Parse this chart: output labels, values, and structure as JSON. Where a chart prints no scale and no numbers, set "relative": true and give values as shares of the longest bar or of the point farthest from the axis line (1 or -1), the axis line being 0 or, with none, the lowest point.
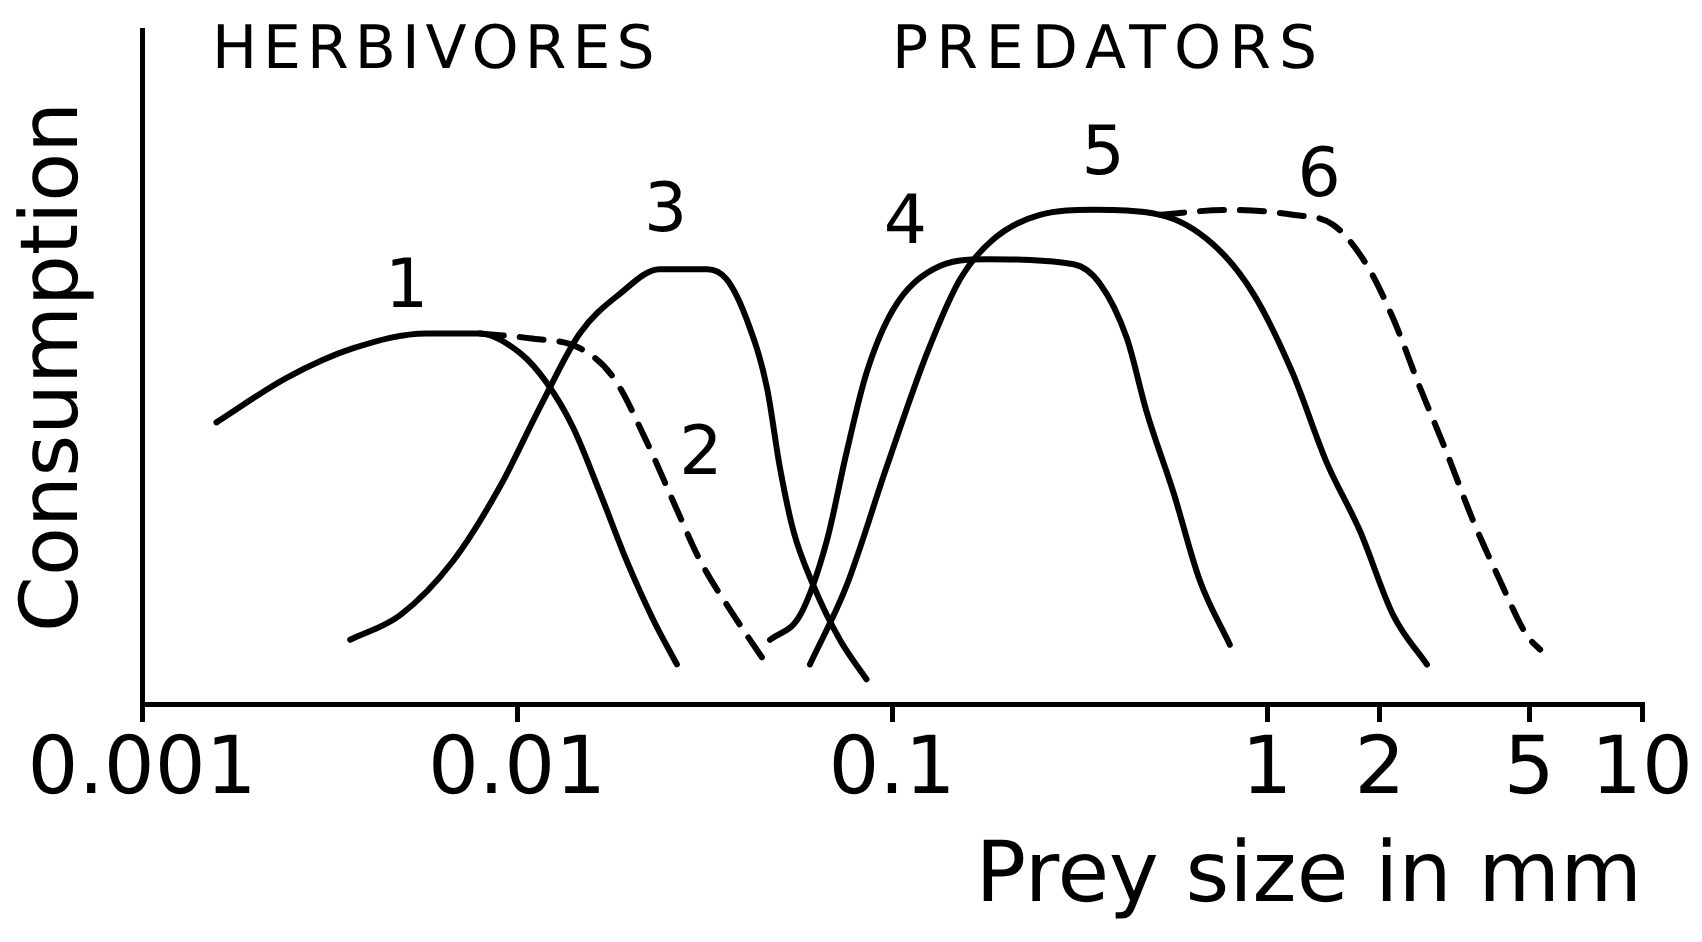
{
  "chart_data": {
    "type": "line",
    "xlabel": "Prey size in mm",
    "ylabel": "Consumption",
    "annotations": [
      "HERBIVORES",
      "PREDATORS"
    ],
    "relative": true,
    "log": "x",
    "grid": false,
    "marker": "none",
    "xlim": [
      0.001,
      10
    ],
    "xticks": [
      0.001,
      0.01,
      0.1,
      1,
      2,
      5,
      10
    ],
    "series": [
      {
        "name": "1",
        "color": "#000000",
        "line_style": "solid",
        "x": [
          0.00158,
          0.00243,
          0.00366,
          0.00574,
          0.00796,
          0.0102,
          0.012,
          0.0141,
          0.0166,
          0.0196,
          0.0231,
          0.0267
        ],
        "values": [
          0.57,
          0.66,
          0.72,
          0.75,
          0.75,
          0.71,
          0.65,
          0.56,
          0.43,
          0.29,
          0.17,
          0.08
        ]
      },
      {
        "name": "2",
        "color": "#000000",
        "line_style": "dashed",
        "x": [
          0.00796,
          0.0108,
          0.0147,
          0.0181,
          0.0222,
          0.0261,
          0.0308,
          0.0378,
          0.0454
        ],
        "values": [
          0.75,
          0.74,
          0.72,
          0.66,
          0.53,
          0.41,
          0.29,
          0.18,
          0.09
        ]
      },
      {
        "name": "3",
        "color": "#000000",
        "line_style": "solid",
        "x": [
          0.00359,
          0.00488,
          0.00676,
          0.00901,
          0.0115,
          0.0147,
          0.0188,
          0.024,
          0.0321,
          0.0362,
          0.0409,
          0.0464,
          0.0502,
          0.0546,
          0.0617,
          0.0726,
          0.0855
        ],
        "values": [
          0.13,
          0.18,
          0.29,
          0.44,
          0.6,
          0.75,
          0.83,
          0.88,
          0.88,
          0.86,
          0.78,
          0.64,
          0.48,
          0.35,
          0.24,
          0.13,
          0.05
        ]
      },
      {
        "name": "4",
        "color": "#000000",
        "line_style": "solid",
        "x": [
          0.0473,
          0.0569,
          0.067,
          0.0757,
          0.0855,
          0.101,
          0.129,
          0.179,
          0.305,
          0.359,
          0.423,
          0.478,
          0.562,
          0.662,
          0.796
        ],
        "values": [
          0.13,
          0.18,
          0.33,
          0.51,
          0.67,
          0.8,
          0.88,
          0.9,
          0.89,
          0.85,
          0.74,
          0.59,
          0.43,
          0.25,
          0.12
        ]
      },
      {
        "name": "5",
        "color": "#000000",
        "line_style": "solid",
        "x": [
          0.0604,
          0.0757,
          0.0968,
          0.124,
          0.152,
          0.186,
          0.248,
          0.344,
          0.519,
          0.719,
          0.92,
          1.17,
          1.44,
          1.77,
          2.17,
          2.67
        ],
        "values": [
          0.08,
          0.24,
          0.48,
          0.71,
          0.86,
          0.94,
          0.99,
          1.0,
          0.99,
          0.93,
          0.83,
          0.67,
          0.49,
          0.35,
          0.18,
          0.08
        ]
      },
      {
        "name": "6",
        "color": "#000000",
        "line_style": "dashed",
        "x": [
          0.519,
          0.78,
          1.17,
          1.5,
          1.84,
          2.17,
          2.56,
          3.01,
          3.55,
          4.18,
          4.92,
          5.35
        ],
        "values": [
          0.99,
          1.0,
          0.99,
          0.97,
          0.89,
          0.78,
          0.64,
          0.51,
          0.37,
          0.25,
          0.14,
          0.11
        ]
      }
    ]
  }
}
